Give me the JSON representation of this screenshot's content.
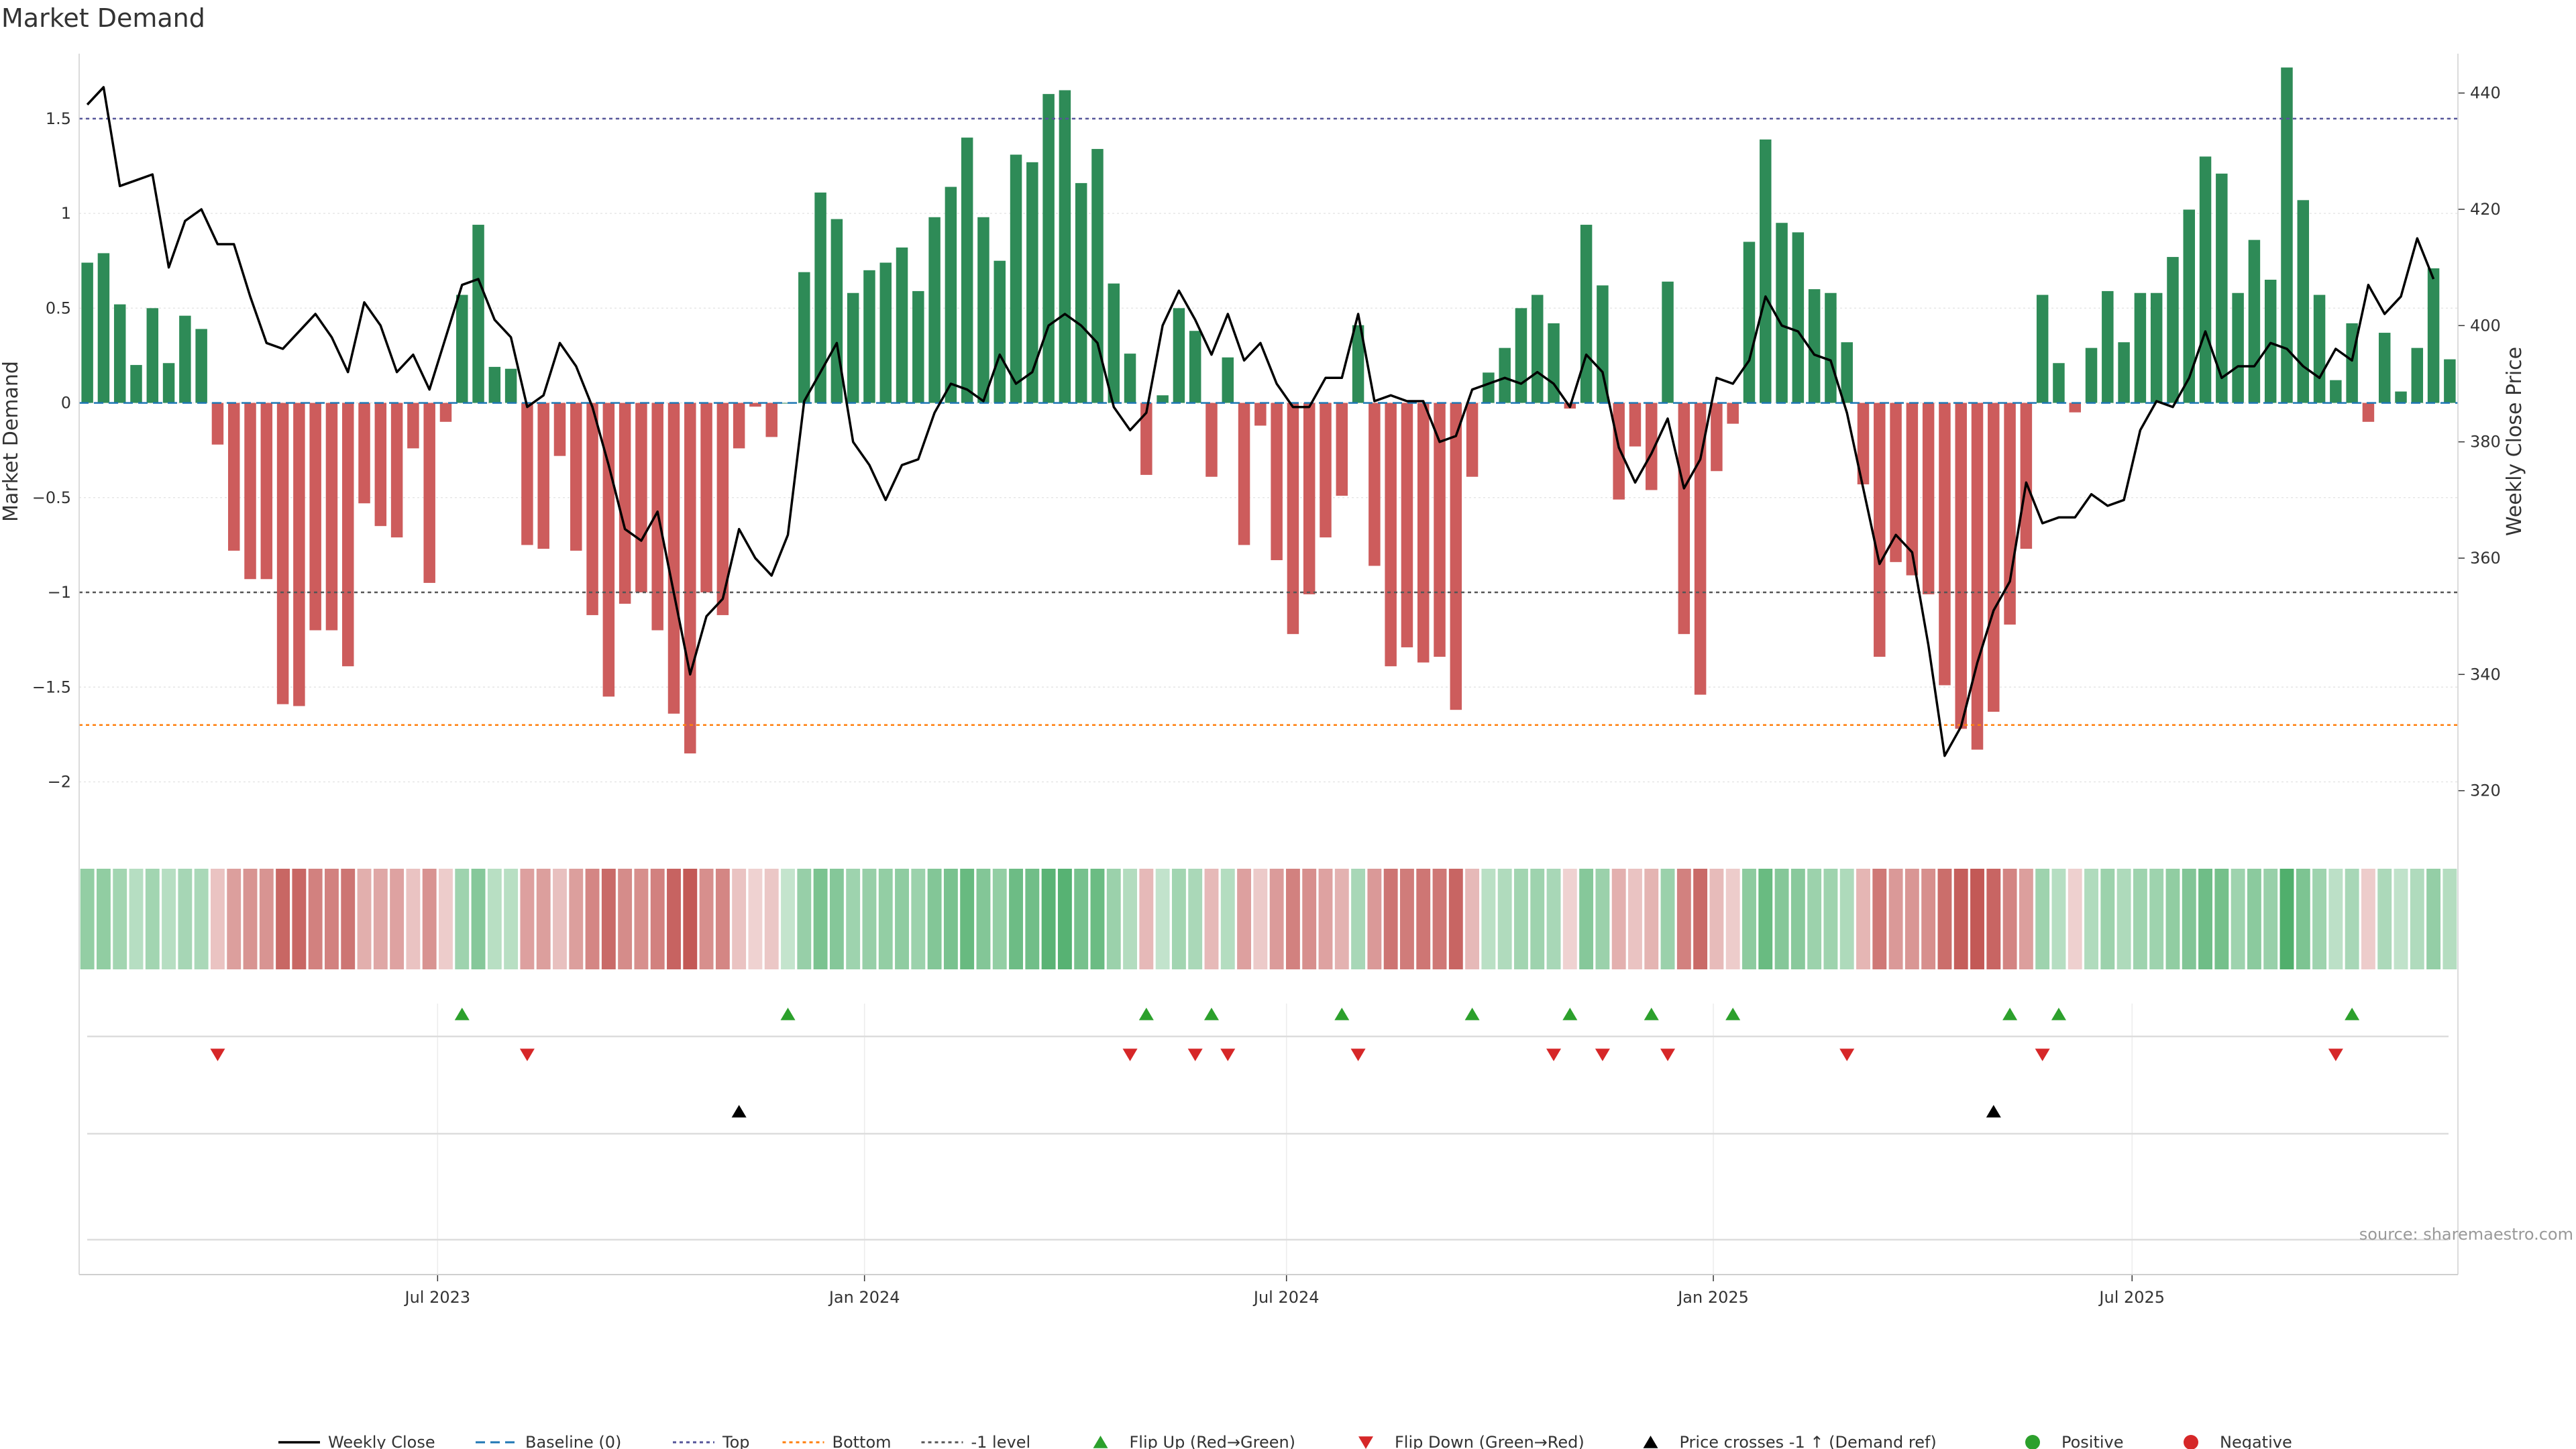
{
  "chart_data": {
    "type": "bar",
    "title": "Market Demand",
    "ylabel_left": "Market Demand",
    "ylabel_right": "Weekly Close Price",
    "ylim_left": [
      -2.2,
      1.85
    ],
    "ylim_right": [
      315,
      447
    ],
    "yticks_left": [
      -2,
      -1.5,
      -1,
      -0.5,
      0,
      0.5,
      1,
      1.5
    ],
    "yticks_left_labels": [
      "−2",
      "−1.5",
      "−1",
      "−0.5",
      "0",
      "0.5",
      "1",
      "1.5"
    ],
    "yticks_right": [
      320,
      340,
      360,
      380,
      400,
      420,
      440
    ],
    "yticks_right_labels": [
      "320",
      "340",
      "360",
      "380",
      "400",
      "420",
      "440"
    ],
    "xticks": [
      {
        "label": "Jul 2023",
        "week": 21.5
      },
      {
        "label": "Jan 2024",
        "week": 47.7
      },
      {
        "label": "Jul 2024",
        "week": 73.6
      },
      {
        "label": "Jan 2025",
        "week": 99.8
      },
      {
        "label": "Jul 2025",
        "week": 125.5
      }
    ],
    "reference_lines": {
      "top": 1.5,
      "bottom": -1.7,
      "minus_one": -1,
      "baseline": 0
    },
    "demand": [
      0.74,
      0.79,
      0.52,
      0.2,
      0.5,
      0.21,
      0.46,
      0.39,
      -0.22,
      -0.78,
      -0.93,
      -0.93,
      -1.59,
      -1.6,
      -1.2,
      -1.2,
      -1.39,
      -0.53,
      -0.65,
      -0.71,
      -0.24,
      -0.95,
      -0.1,
      0.57,
      0.94,
      0.19,
      0.18,
      -0.75,
      -0.77,
      -0.28,
      -0.78,
      -1.12,
      -1.55,
      -1.06,
      -1.0,
      -1.2,
      -1.64,
      -1.85,
      -1.0,
      -1.12,
      -0.24,
      -0.02,
      -0.18,
      0.0,
      0.69,
      1.11,
      0.97,
      0.58,
      0.7,
      0.74,
      0.82,
      0.59,
      0.98,
      1.14,
      1.4,
      0.98,
      0.75,
      1.31,
      1.27,
      1.63,
      1.65,
      1.16,
      1.34,
      0.63,
      0.26,
      -0.38,
      0.04,
      0.5,
      0.38,
      -0.39,
      0.24,
      -0.75,
      -0.12,
      -0.83,
      -1.22,
      -1.01,
      -0.71,
      -0.49,
      0.41,
      -0.86,
      -1.39,
      -1.29,
      -1.37,
      -1.34,
      -1.62,
      -0.39,
      0.16,
      0.29,
      0.5,
      0.57,
      0.42,
      -0.03,
      0.94,
      0.62,
      -0.51,
      -0.23,
      -0.46,
      0.64,
      -1.22,
      -1.54,
      -0.36,
      -0.11,
      0.85,
      1.39,
      0.95,
      0.9,
      0.6,
      0.58,
      0.32,
      -0.43,
      -1.34,
      -0.84,
      -0.91,
      -1.01,
      -1.49,
      -1.72,
      -1.83,
      -1.63,
      -1.17,
      -0.77,
      0.57,
      0.21,
      -0.05,
      0.29,
      0.59,
      0.32,
      0.58,
      0.58,
      0.77,
      1.02,
      1.3,
      1.21,
      0.58,
      0.86,
      0.65,
      1.77,
      1.07,
      0.57,
      0.12,
      0.42,
      -0.1,
      0.37,
      0.06,
      0.29,
      0.71,
      0.23
    ],
    "close": [
      438,
      441,
      424,
      425,
      426,
      410,
      418,
      420,
      414,
      414,
      405,
      397,
      396,
      399,
      402,
      398,
      392,
      404,
      400,
      392,
      395,
      389,
      398,
      407,
      408,
      401,
      398,
      386,
      388,
      397,
      393,
      386,
      376,
      365,
      363,
      368,
      354,
      340,
      350,
      353,
      365,
      360,
      357,
      364,
      387,
      392,
      397,
      380,
      376,
      370,
      376,
      377,
      385,
      390,
      389,
      387,
      395,
      390,
      392,
      400,
      402,
      400,
      397,
      386,
      382,
      385,
      400,
      406,
      401,
      395,
      402,
      394,
      397,
      390,
      386,
      386,
      391,
      391,
      402,
      387,
      388,
      387,
      387,
      380,
      381,
      389,
      390,
      391,
      390,
      392,
      390,
      386,
      395,
      392,
      379,
      373,
      378,
      384,
      372,
      377,
      391,
      390,
      394,
      405,
      400,
      399,
      395,
      394,
      385,
      372,
      359,
      364,
      361,
      345,
      326,
      331,
      342,
      351,
      356,
      373,
      366,
      367,
      367,
      371,
      369,
      370,
      382,
      387,
      386,
      391,
      399,
      391,
      393,
      393,
      397,
      396,
      393,
      391,
      396,
      394,
      407,
      402,
      405,
      415,
      408
    ]
  },
  "markers": {
    "flip_up_weeks": [
      23,
      43,
      65,
      69,
      77,
      85,
      91,
      96,
      101,
      118,
      121,
      139
    ],
    "flip_down_weeks": [
      8,
      27,
      64,
      68,
      70,
      78,
      90,
      93,
      97,
      108,
      120,
      138
    ],
    "price_cross_weeks": [
      40,
      117
    ]
  },
  "legend": [
    {
      "label": "Weekly Close",
      "kind": "line",
      "color": "#000000"
    },
    {
      "label": "Baseline (0)",
      "kind": "dash",
      "color": "#1f77b4"
    },
    {
      "label": "Top",
      "kind": "dot",
      "color": "#555599"
    },
    {
      "label": "Bottom",
      "kind": "dot",
      "color": "#ff7f0e"
    },
    {
      "label": "-1 level",
      "kind": "dot",
      "color": "#555555"
    },
    {
      "label": "Flip Up (Red→Green)",
      "kind": "tri-up",
      "color": "#2ca02c"
    },
    {
      "label": "Flip Down (Green→Red)",
      "kind": "tri-down",
      "color": "#d62728"
    },
    {
      "label": "Price crosses -1 ↑ (Demand ref)",
      "kind": "tri-up",
      "color": "#000000"
    },
    {
      "label": "Positive",
      "kind": "dot-marker",
      "color": "#2ca02c"
    },
    {
      "label": "Negative",
      "kind": "dot-marker",
      "color": "#d62728"
    }
  ],
  "source": "source: sharemaestro.com",
  "colors": {
    "positive": "#2e8b57",
    "negative": "#cd5c5c",
    "line": "#000000"
  }
}
